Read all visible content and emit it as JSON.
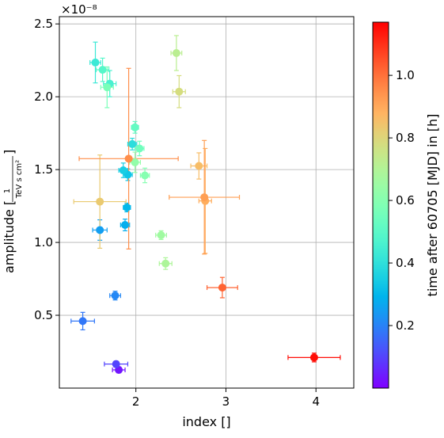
{
  "chart_data": {
    "type": "scatter",
    "title": "",
    "xlabel": "index []",
    "ylabel_prefix": "amplitude [",
    "ylabel_frac_num": "1",
    "ylabel_frac_den": "TeV s cm²",
    "ylabel_suffix": "]",
    "y_offset_label": "×10⁻⁸",
    "xlim": [
      1.15,
      4.42
    ],
    "ylim": [
      0.0,
      2.55
    ],
    "xticks": [
      2,
      3,
      4
    ],
    "xtick_labels": [
      "2",
      "3",
      "4"
    ],
    "yticks": [
      0.5,
      1.0,
      1.5,
      2.0,
      2.5
    ],
    "ytick_labels": [
      "0.5",
      "1.0",
      "1.5",
      "2.0",
      "2.5"
    ],
    "grid": true,
    "colorbar": {
      "label": "time after 60705 [MJD] in [h]",
      "colormap": "rainbow",
      "range": [
        0.0,
        1.17
      ],
      "ticks": [
        0.2,
        0.4,
        0.6,
        0.8,
        1.0
      ],
      "tick_labels": [
        "0.2",
        "0.4",
        "0.6",
        "0.8",
        "1.0"
      ]
    },
    "points": [
      {
        "x": 1.81,
        "y": 0.125,
        "xerr": 0.07,
        "yerr": 0.02,
        "c": 0.03
      },
      {
        "x": 1.78,
        "y": 0.165,
        "xerr": 0.13,
        "yerr": 0.02,
        "c": 0.1
      },
      {
        "x": 1.41,
        "y": 0.46,
        "xerr": 0.13,
        "yerr": 0.06,
        "c": 0.18
      },
      {
        "x": 1.77,
        "y": 0.635,
        "xerr": 0.06,
        "yerr": 0.03,
        "c": 0.21
      },
      {
        "x": 1.6,
        "y": 1.085,
        "xerr": 0.08,
        "yerr": 0.07,
        "c": 0.25
      },
      {
        "x": 1.88,
        "y": 1.12,
        "xerr": 0.05,
        "yerr": 0.04,
        "c": 0.28
      },
      {
        "x": 1.9,
        "y": 1.24,
        "xerr": 0.04,
        "yerr": 0.03,
        "c": 0.3
      },
      {
        "x": 1.91,
        "y": 1.465,
        "xerr": 0.05,
        "yerr": 0.04,
        "c": 0.33
      },
      {
        "x": 1.86,
        "y": 1.495,
        "xerr": 0.05,
        "yerr": 0.05,
        "c": 0.35
      },
      {
        "x": 1.96,
        "y": 1.675,
        "xerr": 0.05,
        "yerr": 0.04,
        "c": 0.39
      },
      {
        "x": 1.55,
        "y": 2.235,
        "xerr": 0.06,
        "yerr": 0.14,
        "c": 0.43
      },
      {
        "x": 1.71,
        "y": 2.09,
        "xerr": 0.07,
        "yerr": 0.09,
        "c": 0.46
      },
      {
        "x": 1.63,
        "y": 2.185,
        "xerr": 0.07,
        "yerr": 0.08,
        "c": 0.49
      },
      {
        "x": 1.99,
        "y": 1.79,
        "xerr": 0.04,
        "yerr": 0.04,
        "c": 0.52
      },
      {
        "x": 2.04,
        "y": 1.645,
        "xerr": 0.05,
        "yerr": 0.05,
        "c": 0.55
      },
      {
        "x": 1.68,
        "y": 2.065,
        "xerr": 0.07,
        "yerr": 0.14,
        "c": 0.57
      },
      {
        "x": 2.1,
        "y": 1.46,
        "xerr": 0.05,
        "yerr": 0.05,
        "c": 0.6
      },
      {
        "x": 1.99,
        "y": 1.55,
        "xerr": 0.06,
        "yerr": 0.07,
        "c": 0.63
      },
      {
        "x": 2.28,
        "y": 1.05,
        "xerr": 0.06,
        "yerr": 0.03,
        "c": 0.66
      },
      {
        "x": 2.33,
        "y": 0.855,
        "xerr": 0.07,
        "yerr": 0.04,
        "c": 0.69
      },
      {
        "x": 2.45,
        "y": 2.3,
        "xerr": 0.06,
        "yerr": 0.12,
        "c": 0.72
      },
      {
        "x": 2.48,
        "y": 2.035,
        "xerr": 0.07,
        "yerr": 0.11,
        "c": 0.78
      },
      {
        "x": 1.6,
        "y": 1.28,
        "xerr": 0.29,
        "yerr": 0.32,
        "c": 0.83
      },
      {
        "x": 2.7,
        "y": 1.525,
        "xerr": 0.09,
        "yerr": 0.09,
        "c": 0.86
      },
      {
        "x": 2.77,
        "y": 1.285,
        "xerr": 0.07,
        "yerr": 0.36,
        "c": 0.89
      },
      {
        "x": 2.76,
        "y": 1.31,
        "xerr": 0.39,
        "yerr": 0.39,
        "c": 0.92
      },
      {
        "x": 1.92,
        "y": 1.575,
        "xerr": 0.55,
        "yerr": 0.62,
        "c": 0.95
      },
      {
        "x": 2.96,
        "y": 0.69,
        "xerr": 0.17,
        "yerr": 0.07,
        "c": 1.02
      },
      {
        "x": 3.98,
        "y": 0.21,
        "xerr": 0.29,
        "yerr": 0.03,
        "c": 1.15
      }
    ]
  }
}
